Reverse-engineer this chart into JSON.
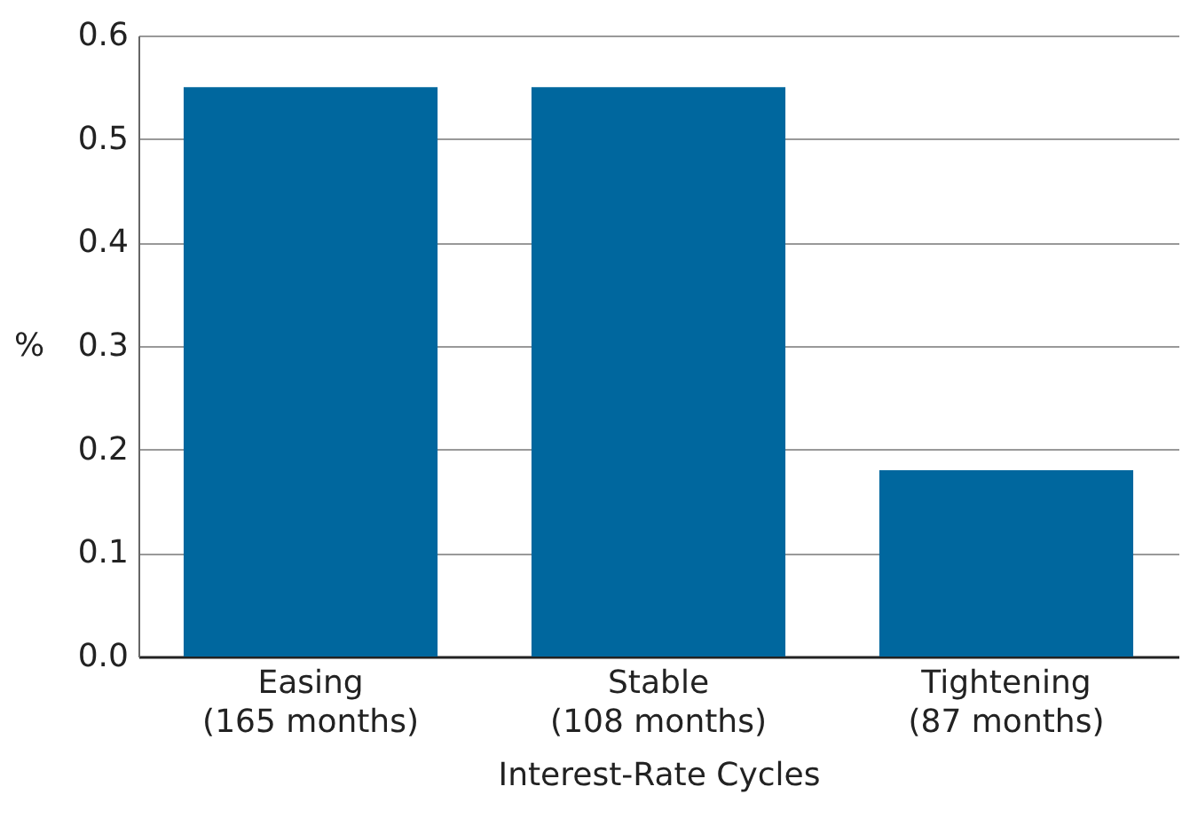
{
  "chart_data": {
    "type": "bar",
    "xlabel": "Interest-Rate Cycles",
    "ylabel": "%",
    "categories": [
      "Easing\n(165 months)",
      "Stable\n(108 months)",
      "Tightening\n(87 months)"
    ],
    "values": [
      0.55,
      0.55,
      0.18
    ],
    "color": "#00679e",
    "ylim": [
      0,
      0.6
    ],
    "yticks": [
      {
        "value": 0,
        "label": "0.0"
      },
      {
        "value": 0.1,
        "label": "0.1"
      },
      {
        "value": 0.2,
        "label": "0.2"
      },
      {
        "value": 0.3,
        "label": "0.3"
      },
      {
        "value": 0.4,
        "label": "0.4"
      },
      {
        "value": 0.5,
        "label": "0.5"
      },
      {
        "value": 0.6,
        "label": "0.6"
      }
    ],
    "grid": "y"
  }
}
